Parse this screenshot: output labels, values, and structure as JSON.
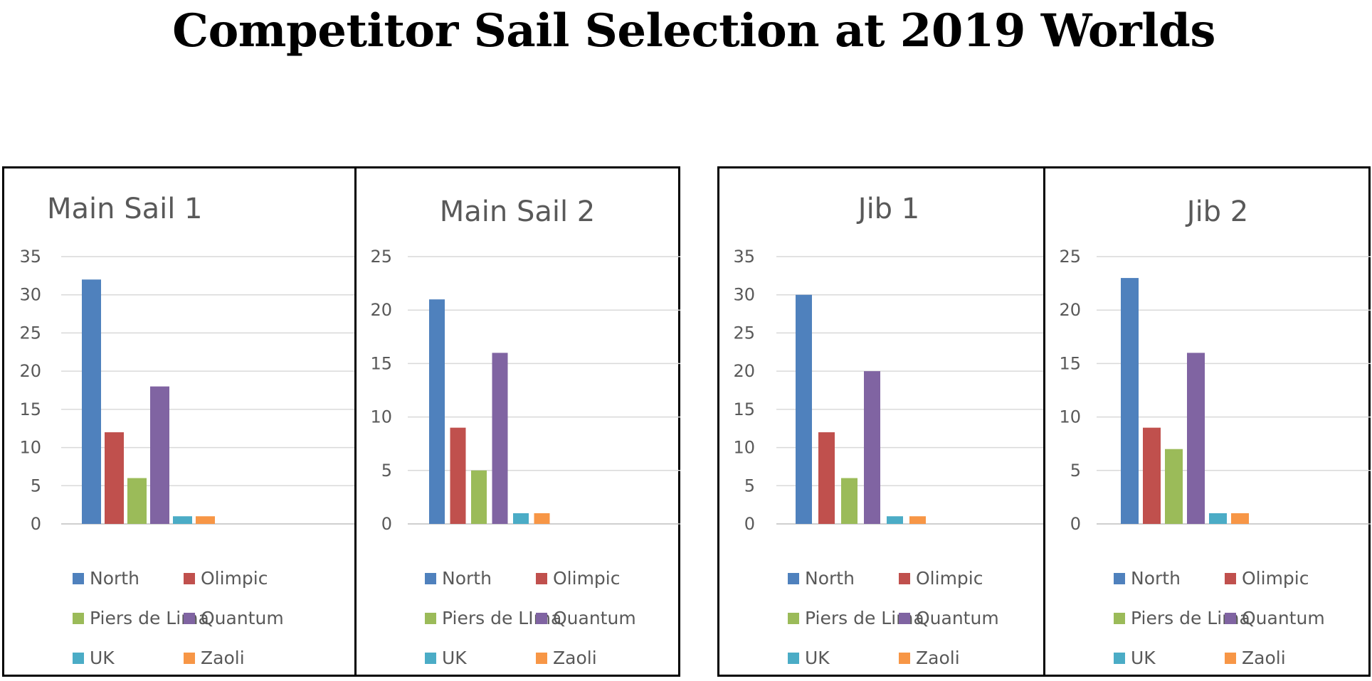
{
  "title": "Competitor Sail Selection at 2019 Worlds",
  "colors": {
    "North": "#4F81BD",
    "Olimpic": "#C0504D",
    "Piers de Lima": "#9BBB59",
    "Quantum": "#8064A2",
    "UK": "#4BACC6",
    "Zaoli": "#F79646"
  },
  "chart_data": [
    {
      "type": "bar",
      "title": "Main Sail 1",
      "categories": [
        "North",
        "Olimpic",
        "Piers de Lima",
        "Quantum",
        "UK",
        "Zaoli"
      ],
      "values": [
        32,
        12,
        6,
        18,
        1,
        1
      ],
      "ylim": [
        0,
        35
      ],
      "yticks": [
        0,
        5,
        10,
        15,
        20,
        25,
        30,
        35
      ],
      "grid": true,
      "legend": "bottom"
    },
    {
      "type": "bar",
      "title": "Main Sail 2",
      "categories": [
        "North",
        "Olimpic",
        "Piers de LIma",
        "Quantum",
        "UK",
        "Zaoli"
      ],
      "values": [
        21,
        9,
        5,
        16,
        1,
        1
      ],
      "ylim": [
        0,
        25
      ],
      "yticks": [
        0,
        5,
        10,
        15,
        20,
        25
      ],
      "grid": true,
      "legend": "bottom"
    },
    {
      "type": "bar",
      "title": "Jib 1",
      "categories": [
        "North",
        "Olimpic",
        "Piers de Lima",
        "Quantum",
        "UK",
        "Zaoli"
      ],
      "values": [
        30,
        12,
        6,
        20,
        1,
        1
      ],
      "ylim": [
        0,
        35
      ],
      "yticks": [
        0,
        5,
        10,
        15,
        20,
        25,
        30,
        35
      ],
      "grid": true,
      "legend": "bottom"
    },
    {
      "type": "bar",
      "title": "Jib 2",
      "categories": [
        "North",
        "Olimpic",
        "Piers de Lima",
        "Quantum",
        "UK",
        "Zaoli"
      ],
      "values": [
        23,
        9,
        7,
        16,
        1,
        1
      ],
      "ylim": [
        0,
        25
      ],
      "yticks": [
        0,
        5,
        10,
        15,
        20,
        25
      ],
      "grid": true,
      "legend": "bottom"
    }
  ]
}
